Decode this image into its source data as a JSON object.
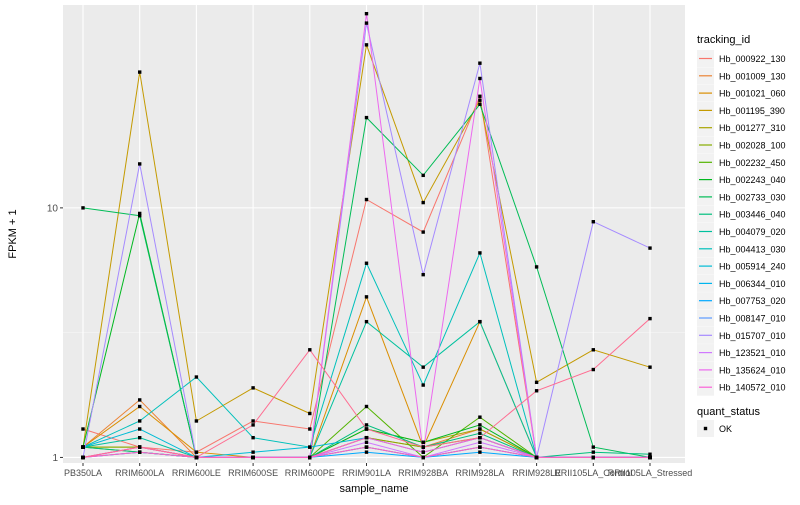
{
  "chart_data": {
    "type": "line",
    "title": "",
    "xlabel": "sample_name",
    "ylabel": "FPKM + 1",
    "y_scale": "log10",
    "ylim": [
      0.95,
      65
    ],
    "y_ticks": [
      1,
      10
    ],
    "y_tick_labels": [
      "1",
      "10"
    ],
    "grid": true,
    "legend_position": "right",
    "categories": [
      "PB350LA",
      "RRIM600LA",
      "RRIM600LE",
      "RRIM600SE",
      "RRIM600PE",
      "RRIM901LA",
      "RRIM928BA",
      "RRIM928LA",
      "RRIM928LE",
      "RRII105LA_Control",
      "RRII105LA_Stressed"
    ],
    "category_labels": [
      "PB350LA",
      "RRIM600LA",
      "RRIM600LE",
      "RRIM600SE",
      "RRIM600PE",
      "RRIM901LA",
      "RRIM928BA",
      "RRIM928LA",
      "RRIM928LE",
      "RRII105LA_Control",
      "RRII105LA_Stressed"
    ],
    "legend_title": "tracking_id",
    "series": [
      {
        "name": "Hb_000922_130",
        "color": "#F8766D",
        "values": [
          1.3,
          1.1,
          1.05,
          1.4,
          1.3,
          10.8,
          8.0,
          28.0,
          1.0,
          1.0,
          1.0
        ]
      },
      {
        "name": "Hb_001009_130",
        "color": "#EB8335",
        "values": [
          1.1,
          1.7,
          1.0,
          1.0,
          1.0,
          1.2,
          1.1,
          1.3,
          1.0,
          1.0,
          1.0
        ]
      },
      {
        "name": "Hb_001021_060",
        "color": "#DA8E00",
        "values": [
          1.1,
          1.6,
          1.05,
          1.0,
          1.0,
          4.4,
          1.1,
          3.5,
          1.0,
          1.0,
          1.0
        ]
      },
      {
        "name": "Hb_001195_390",
        "color": "#C49A00",
        "values": [
          1.1,
          35.0,
          1.4,
          1.9,
          1.5,
          45.0,
          10.5,
          27.0,
          2.0,
          2.7,
          2.3
        ]
      },
      {
        "name": "Hb_001277_310",
        "color": "#A9A400",
        "values": [
          1.1,
          1.1,
          1.0,
          1.0,
          1.0,
          1.3,
          1.15,
          1.3,
          1.0,
          1.0,
          1.0
        ]
      },
      {
        "name": "Hb_002028_100",
        "color": "#86AC00",
        "values": [
          1.1,
          1.1,
          1.0,
          1.0,
          1.0,
          1.2,
          1.1,
          1.2,
          1.0,
          1.0,
          1.0
        ]
      },
      {
        "name": "Hb_002232_450",
        "color": "#53B400",
        "values": [
          1.1,
          1.05,
          1.0,
          1.0,
          1.0,
          1.6,
          1.0,
          1.45,
          1.0,
          1.0,
          1.0
        ]
      },
      {
        "name": "Hb_002243_040",
        "color": "#00B81F",
        "values": [
          1.1,
          9.5,
          1.0,
          1.0,
          1.0,
          1.3,
          1.15,
          1.35,
          1.0,
          1.0,
          1.0
        ]
      },
      {
        "name": "Hb_002733_030",
        "color": "#00BC56",
        "values": [
          10.0,
          9.3,
          1.0,
          1.0,
          1.0,
          23.0,
          13.5,
          26.0,
          5.8,
          1.1,
          1.0
        ]
      },
      {
        "name": "Hb_003446_040",
        "color": "#00BF7D",
        "values": [
          1.1,
          1.05,
          1.0,
          1.0,
          1.0,
          1.35,
          1.1,
          1.25,
          1.0,
          1.05,
          1.03
        ]
      },
      {
        "name": "Hb_004079_020",
        "color": "#00C19E",
        "values": [
          1.1,
          1.2,
          1.0,
          1.0,
          1.0,
          3.5,
          2.3,
          3.5,
          1.0,
          1.0,
          1.0
        ]
      },
      {
        "name": "Hb_004413_030",
        "color": "#00C0BB",
        "values": [
          1.1,
          1.4,
          2.1,
          1.2,
          1.1,
          6.0,
          1.95,
          6.6,
          1.0,
          1.0,
          1.0
        ]
      },
      {
        "name": "Hb_005914_240",
        "color": "#00BCD6",
        "values": [
          1.1,
          1.3,
          1.0,
          1.05,
          1.1,
          1.2,
          1.05,
          1.2,
          1.0,
          1.0,
          1.0
        ]
      },
      {
        "name": "Hb_006344_010",
        "color": "#00B5EE",
        "values": [
          1.0,
          1.1,
          1.0,
          1.0,
          1.0,
          1.1,
          1.0,
          1.1,
          1.0,
          1.0,
          1.0
        ]
      },
      {
        "name": "Hb_007753_020",
        "color": "#00A9FF",
        "values": [
          1.0,
          1.05,
          1.0,
          1.0,
          1.0,
          1.05,
          1.0,
          1.05,
          1.0,
          1.0,
          1.0
        ]
      },
      {
        "name": "Hb_008147_010",
        "color": "#5B9AFF",
        "values": [
          1.0,
          1.05,
          1.0,
          1.0,
          1.0,
          1.1,
          1.0,
          1.1,
          1.0,
          1.0,
          1.0
        ]
      },
      {
        "name": "Hb_015707_010",
        "color": "#A58AFF",
        "values": [
          1.0,
          15.0,
          1.0,
          1.0,
          1.0,
          55.0,
          5.4,
          38.0,
          1.0,
          8.8,
          6.9
        ]
      },
      {
        "name": "Hb_123521_010",
        "color": "#D078FF",
        "values": [
          1.0,
          1.1,
          1.0,
          1.0,
          1.0,
          1.15,
          1.0,
          1.15,
          1.0,
          1.0,
          1.0
        ]
      },
      {
        "name": "Hb_135624_010",
        "color": "#EC69EF",
        "values": [
          1.0,
          1.1,
          1.0,
          1.0,
          1.0,
          60.0,
          1.05,
          33.0,
          1.0,
          1.0,
          1.0
        ]
      },
      {
        "name": "Hb_140572_010",
        "color": "#FB61D7",
        "values": [
          1.0,
          1.1,
          1.0,
          1.0,
          1.0,
          1.2,
          1.05,
          1.2,
          1.0,
          1.0,
          1.0
        ]
      },
      {
        "name": "",
        "color": "#FF62BC",
        "values": [
          1.0,
          1.05,
          1.0,
          1.0,
          1.0,
          1.1,
          1.0,
          1.1,
          1.0,
          1.0,
          1.0
        ]
      },
      {
        "name": "",
        "color": "#FF6C91",
        "values": [
          1.0,
          1.1,
          1.0,
          1.35,
          2.7,
          1.3,
          1.1,
          1.2,
          1.85,
          2.25,
          3.6
        ]
      }
    ],
    "shape_legend": {
      "title": "quant_status",
      "items": [
        {
          "label": "OK",
          "color": "#000000"
        }
      ]
    }
  }
}
